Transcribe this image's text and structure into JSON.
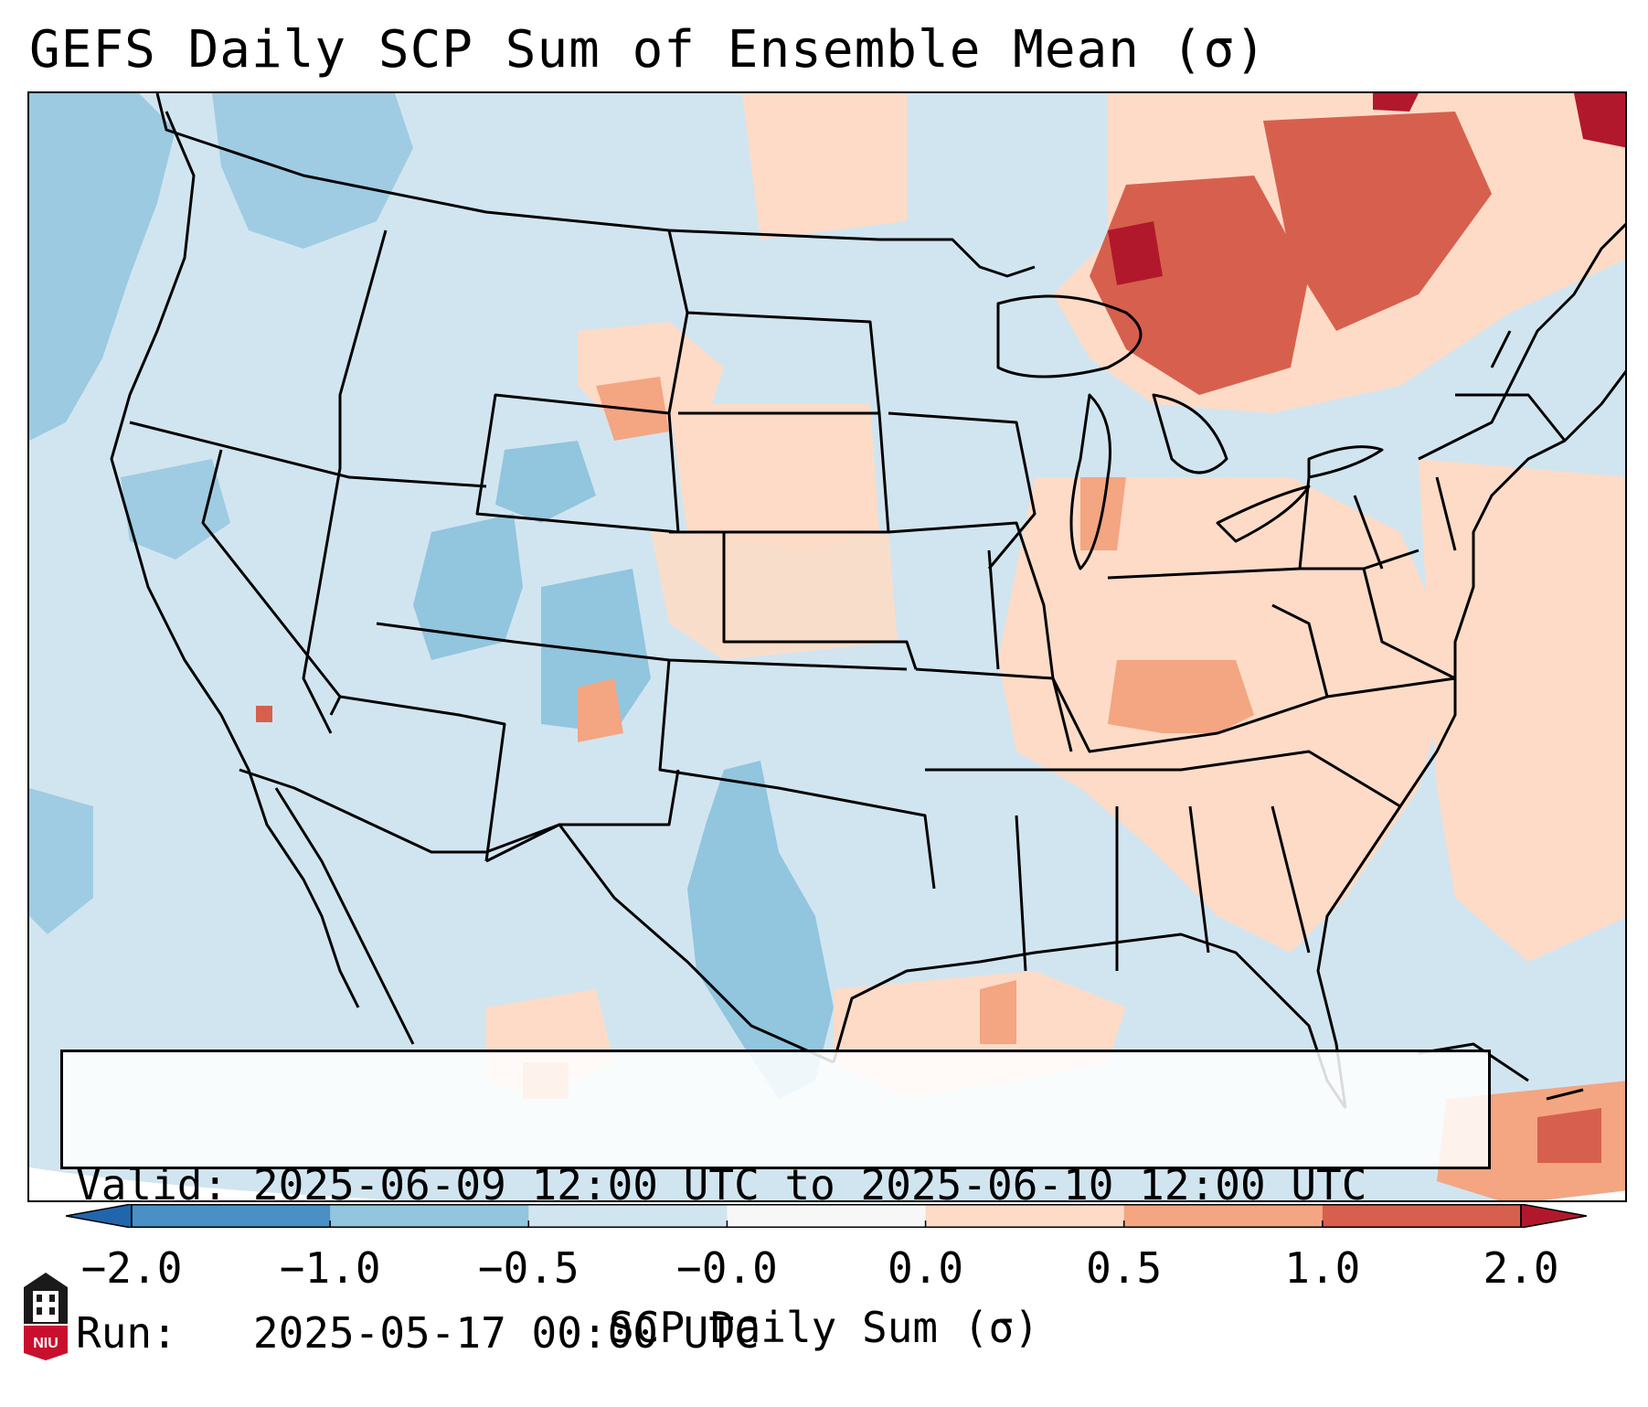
{
  "title": "GEFS Daily SCP Sum of Ensemble Mean (σ)",
  "info_box": {
    "valid_label": "Valid:",
    "valid_value": "2025-06-09 12:00 UTC to 2025-06-10 12:00 UTC",
    "run_label": "Run:",
    "run_value": "2025-05-17 00:00 UTC"
  },
  "colorbar": {
    "ticks": [
      "−2.0",
      "−1.0",
      "−0.5",
      "−0.0",
      "0.0",
      "0.5",
      "1.0",
      "2.0"
    ],
    "bin_colors": [
      "#4a90c6",
      "#92c5de",
      "#d1e5f0",
      "#f7f7f7",
      "#fddbc7",
      "#f4a582",
      "#d6604d"
    ],
    "under_color": "#2166ac",
    "over_color": "#b2182b",
    "label": "SCP Daily Sum (σ)"
  },
  "map": {
    "field": "SCP daily sum anomaly",
    "background_color": "#d1e5f0",
    "region": "Continental United States",
    "notable_areas": [
      {
        "area": "Great Lakes / Ontario",
        "category": "1.0 to 2.0"
      },
      {
        "area": "Ohio Valley / Kentucky",
        "category": "0.5 to 1.0"
      },
      {
        "area": "Eastern US",
        "category": "0.0 to 0.5"
      },
      {
        "area": "West Texas",
        "category": "-1.0 to -0.5"
      },
      {
        "area": "Colorado / Utah",
        "category": "-1.0 to -0.5"
      }
    ]
  },
  "logo": {
    "text": "NIU"
  }
}
